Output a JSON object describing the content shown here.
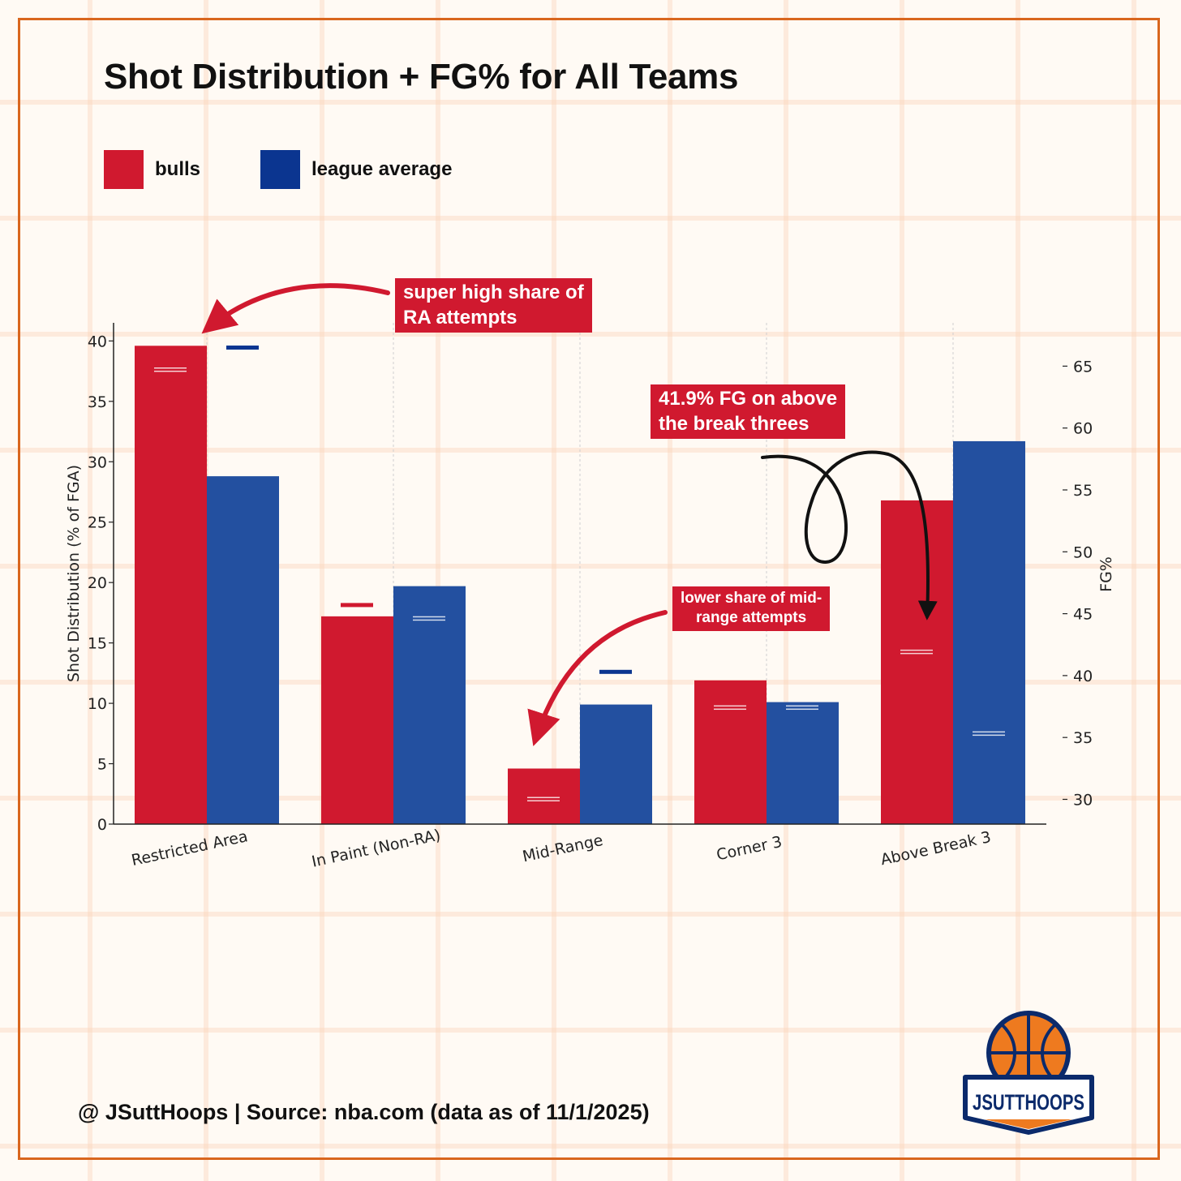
{
  "title": "Shot Distribution + FG% for All Teams",
  "legend": [
    {
      "label": "bulls",
      "color": "#d0192f"
    },
    {
      "label": "league average",
      "color": "#0b3590"
    }
  ],
  "footer": "@ JSuttHoops | Source: nba.com (data as of 11/1/2025)",
  "logo_text": "JSUTTHOOPS",
  "annotations": {
    "ra": [
      "super high share of",
      "RA attempts"
    ],
    "above_break": [
      "41.9% FG on above",
      "the break threes"
    ],
    "mid_range": [
      "lower share of mid-",
      "range attempts"
    ]
  },
  "colors": {
    "bulls": "#d0192f",
    "league": "#2350a0",
    "league_marker": "#0b3590",
    "frame": "#d9661e"
  },
  "chart_data": {
    "type": "bar",
    "categories": [
      "Restricted Area",
      "In Paint (Non-RA)",
      "Mid-Range",
      "Corner 3",
      "Above Break 3"
    ],
    "ylabel": "Shot Distribution (% of FGA)",
    "y2label": "FG%",
    "ylim": [
      0,
      41.5
    ],
    "y2lim": [
      28,
      68.5
    ],
    "yticks": [
      0,
      5,
      10,
      15,
      20,
      25,
      30,
      35,
      40
    ],
    "y2ticks": [
      30,
      35,
      40,
      45,
      50,
      55,
      60,
      65
    ],
    "series": [
      {
        "name": "bulls",
        "values": [
          39.6,
          17.2,
          4.6,
          11.9,
          26.8
        ],
        "fg_pct": [
          64.7,
          45.7,
          30.0,
          37.4,
          41.9
        ]
      },
      {
        "name": "league average",
        "values": [
          28.8,
          19.7,
          9.9,
          10.1,
          31.7
        ],
        "fg_pct": [
          66.5,
          44.6,
          40.3,
          37.4,
          35.3
        ]
      }
    ],
    "legend_position": "top-left",
    "grid": "vertical"
  }
}
